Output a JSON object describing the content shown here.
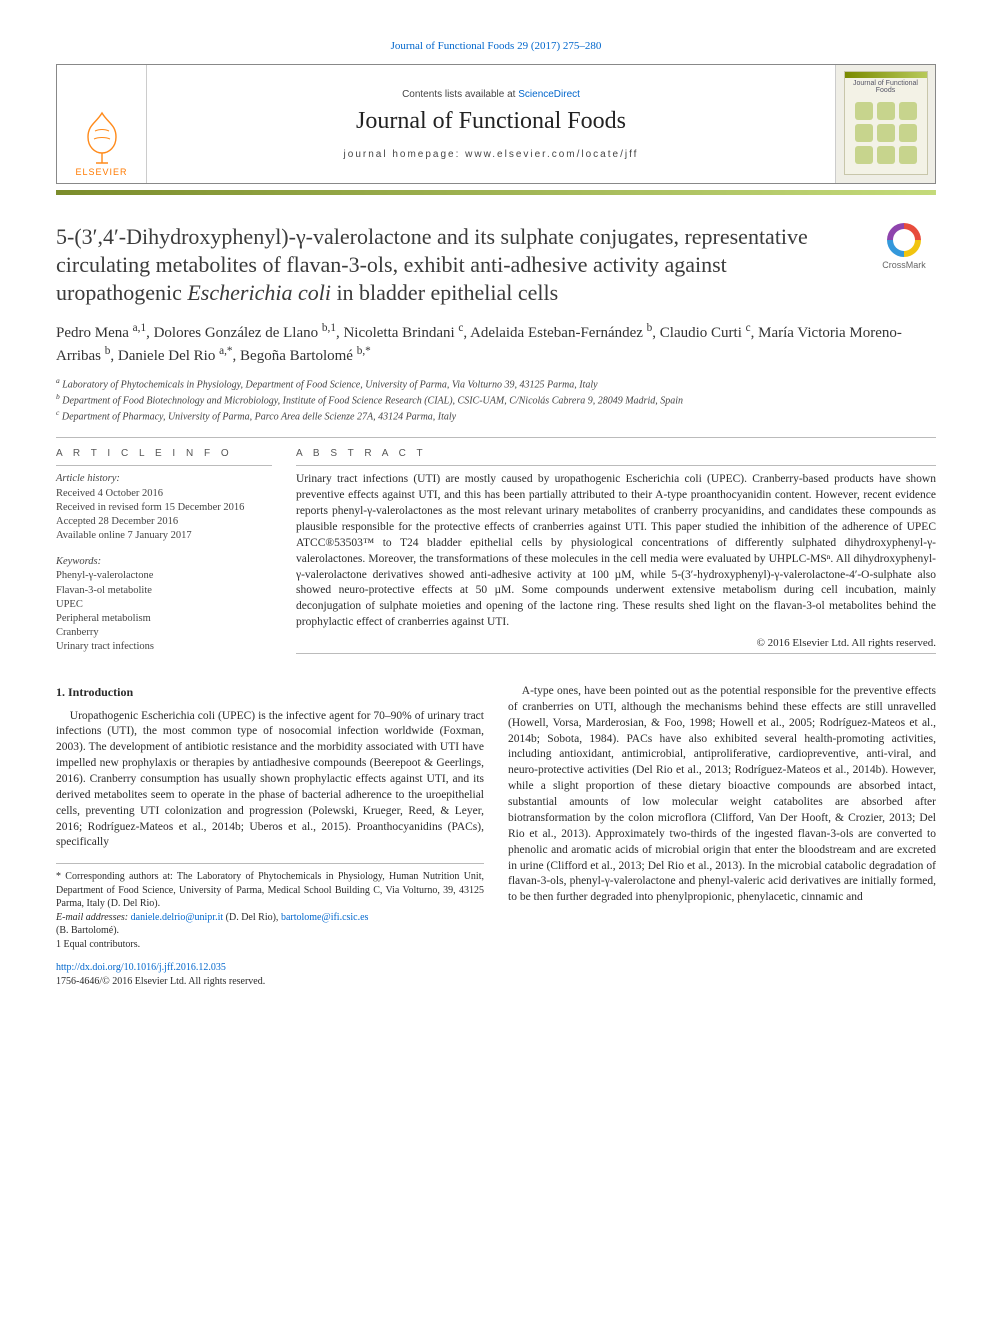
{
  "colors": {
    "link": "#0066cc",
    "accent_gradient_from": "#7b8c2b",
    "accent_gradient_to": "#c4da7a",
    "text": "#2a2a2a",
    "rule": "#bbbbbb",
    "elsevier_orange": "#ff7a00"
  },
  "top_citation": {
    "journal": "Journal of Functional Foods",
    "citation_text": "Journal of Functional Foods 29 (2017) 275–280"
  },
  "banner": {
    "publisher": "ELSEVIER",
    "sciencedirect_prefix": "Contents lists available at ",
    "sciencedirect_link": "ScienceDirect",
    "journal_name": "Journal of Functional Foods",
    "homepage_label": "journal homepage: www.elsevier.com/locate/jff",
    "cover_title": "Journal of Functional Foods"
  },
  "crossmark_label": "CrossMark",
  "title_parts": {
    "p1": "5-(3′,4′-Dihydroxyphenyl)-γ-valerolactone and its sulphate conjugates, representative circulating metabolites of flavan-3-ols, exhibit anti-adhesive activity against uropathogenic ",
    "em": "Escherichia coli",
    "p2": " in bladder epithelial cells"
  },
  "authors_html": "Pedro Mena <sup>a,1</sup>, Dolores González de Llano <sup>b,1</sup>, Nicoletta Brindani <sup>c</sup>, Adelaida Esteban-Fernández <sup>b</sup>, Claudio Curti <sup>c</sup>, María Victoria Moreno-Arribas <sup>b</sup>, Daniele Del Rio <sup>a,*</sup>, Begoña Bartolomé <sup>b,*</sup>",
  "affiliations": [
    "a Laboratory of Phytochemicals in Physiology, Department of Food Science, University of Parma, Via Volturno 39, 43125 Parma, Italy",
    "b Department of Food Biotechnology and Microbiology, Institute of Food Science Research (CIAL), CSIC-UAM, C/Nicolás Cabrera 9, 28049 Madrid, Spain",
    "c Department of Pharmacy, University of Parma, Parco Area delle Scienze 27A, 43124 Parma, Italy"
  ],
  "article_info": {
    "heading": "A R T I C L E   I N F O",
    "history_label": "Article history:",
    "history": [
      "Received 4 October 2016",
      "Received in revised form 15 December 2016",
      "Accepted 28 December 2016",
      "Available online 7 January 2017"
    ],
    "keywords_label": "Keywords:",
    "keywords": [
      "Phenyl-γ-valerolactone",
      "Flavan-3-ol metabolite",
      "UPEC",
      "Peripheral metabolism",
      "Cranberry",
      "Urinary tract infections"
    ]
  },
  "abstract": {
    "heading": "A B S T R A C T",
    "body": "Urinary tract infections (UTI) are mostly caused by uropathogenic Escherichia coli (UPEC). Cranberry-based products have shown preventive effects against UTI, and this has been partially attributed to their A-type proanthocyanidin content. However, recent evidence reports phenyl-γ-valerolactones as the most relevant urinary metabolites of cranberry procyanidins, and candidates these compounds as plausible responsible for the protective effects of cranberries against UTI. This paper studied the inhibition of the adherence of UPEC ATCC®53503™ to T24 bladder epithelial cells by physiological concentrations of differently sulphated dihydroxyphenyl-γ-valerolactones. Moreover, the transformations of these molecules in the cell media were evaluated by UHPLC-MSⁿ. All dihydroxyphenyl-γ-valerolactone derivatives showed anti-adhesive activity at 100 µM, while 5-(3′-hydroxyphenyl)-γ-valerolactone-4′-O-sulphate also showed neuro-protective effects at 50 µM. Some compounds underwent extensive metabolism during cell incubation, mainly deconjugation of sulphate moieties and opening of the lactone ring. These results shed light on the flavan-3-ol metabolites behind the prophylactic effect of cranberries against UTI.",
    "copyright": "© 2016 Elsevier Ltd. All rights reserved."
  },
  "body": {
    "section_heading": "1. Introduction",
    "col_left": "Uropathogenic Escherichia coli (UPEC) is the infective agent for 70–90% of urinary tract infections (UTI), the most common type of nosocomial infection worldwide (Foxman, 2003). The development of antibiotic resistance and the morbidity associated with UTI have impelled new prophylaxis or therapies by antiadhesive compounds (Beerepoot & Geerlings, 2016). Cranberry consumption has usually shown prophylactic effects against UTI, and its derived metabolites seem to operate in the phase of bacterial adherence to the uroepithelial cells, preventing UTI colonization and progression (Polewski, Krueger, Reed, & Leyer, 2016; Rodríguez-Mateos et al., 2014b; Uberos et al., 2015). Proanthocyanidins (PACs), specifically",
    "col_right": "A-type ones, have been pointed out as the potential responsible for the preventive effects of cranberries on UTI, although the mechanisms behind these effects are still unravelled (Howell, Vorsa, Marderosian, & Foo, 1998; Howell et al., 2005; Rodríguez-Mateos et al., 2014b; Sobota, 1984). PACs have also exhibited several health-promoting activities, including antioxidant, antimicrobial, antiproliferative, cardiopreventive, anti-viral, and neuro-protective activities (Del Rio et al., 2013; Rodríguez-Mateos et al., 2014b). However, while a slight proportion of these dietary bioactive compounds are absorbed intact, substantial amounts of low molecular weight catabolites are absorbed after biotransformation by the colon microflora (Clifford, Van Der Hooft, & Crozier, 2013; Del Rio et al., 2013). Approximately two-thirds of the ingested flavan-3-ols are converted to phenolic and aromatic acids of microbial origin that enter the bloodstream and are excreted in urine (Clifford et al., 2013; Del Rio et al., 2013). In the microbial catabolic degradation of flavan-3-ols, phenyl-γ-valerolactone and phenyl-valeric acid derivatives are initially formed, to be then further degraded into phenylpropionic, phenylacetic, cinnamic and"
  },
  "footnotes": {
    "corr": "* Corresponding authors at: The Laboratory of Phytochemicals in Physiology, Human Nutrition Unit, Department of Food Science, University of Parma, Medical School Building C, Via Volturno, 39, 43125 Parma, Italy (D. Del Rio).",
    "email_label": "E-mail addresses:",
    "email1": "daniele.delrio@unipr.it",
    "email1_who": " (D. Del Rio), ",
    "email2": "bartolome@ifi.csic.es",
    "email2_who": "(B. Bartolomé).",
    "equal": "1  Equal contributors."
  },
  "footer": {
    "doi": "http://dx.doi.org/10.1016/j.jff.2016.12.035",
    "issn_line": "1756-4646/© 2016 Elsevier Ltd. All rights reserved."
  }
}
